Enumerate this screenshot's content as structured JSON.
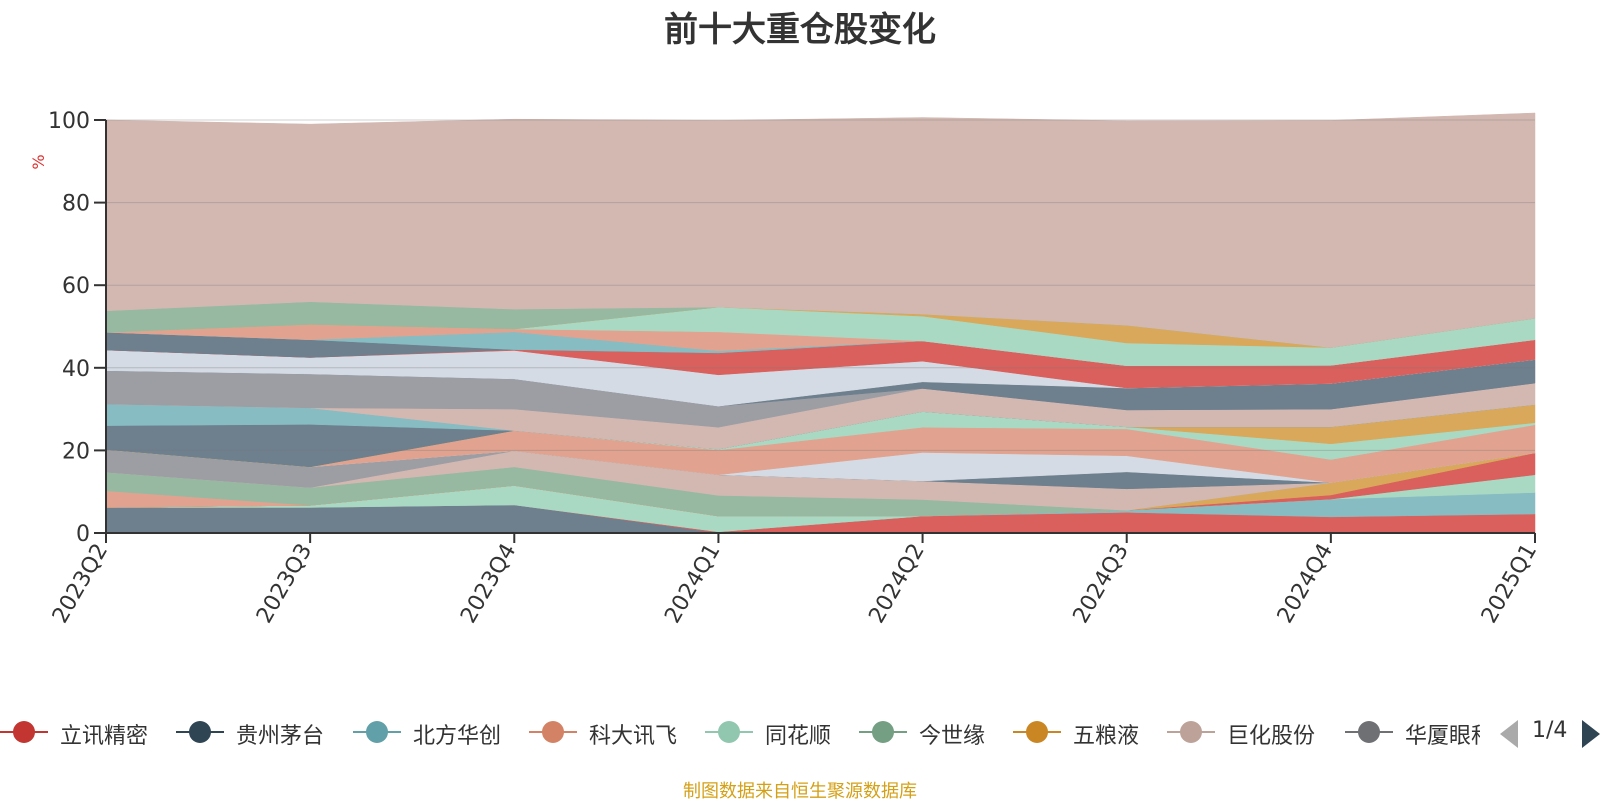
{
  "chart_data": {
    "type": "area",
    "stacked": true,
    "title": "前十大重仓股变化",
    "ylabel": "%",
    "ylim": [
      0,
      100
    ],
    "yticks": [
      0,
      20,
      40,
      60,
      80,
      100
    ],
    "categories": [
      "2023Q2",
      "2023Q3",
      "2023Q4",
      "2024Q1",
      "2024Q2",
      "2024Q3",
      "2024Q4",
      "2025Q1"
    ],
    "grid": true,
    "legend_position": "bottom",
    "series": [
      {
        "color": "#6e7f8e",
        "values": [
          6.2,
          6.2,
          6.8,
          0,
          0,
          0,
          0,
          0
        ]
      },
      {
        "name": "立讯精密",
        "color": "#d9605c",
        "values": [
          0,
          0,
          0,
          0.3,
          4.1,
          5.0,
          3.9,
          4.6
        ]
      },
      {
        "name": "北方华创",
        "color": "#86bcc2",
        "values": [
          0,
          0,
          0,
          0,
          0,
          0.5,
          4.3,
          5.2
        ]
      },
      {
        "name": "同花顺",
        "color": "#a9d9c3",
        "values": [
          0,
          0.5,
          4.7,
          3.8,
          0,
          0,
          0,
          4.3
        ]
      },
      {
        "color": "#d9605c",
        "values": [
          0,
          0,
          0,
          0,
          0,
          0,
          1.0,
          5.3
        ]
      },
      {
        "name": "五粮液",
        "color": "#d9a85a",
        "values": [
          0,
          0,
          0,
          0,
          0,
          0,
          3.0,
          0
        ]
      },
      {
        "name": "科大讯飞",
        "color": "#e1a38f",
        "values": [
          4.0,
          0,
          0,
          0,
          0,
          0,
          0,
          0
        ]
      },
      {
        "name": "今世缘",
        "color": "#97b9a1",
        "values": [
          4.5,
          4.3,
          4.5,
          5.0,
          4.0,
          0,
          0,
          0
        ]
      },
      {
        "name": "巨化股份",
        "color": "#d3b8b1",
        "values": [
          0,
          0,
          3.9,
          5.0,
          4.5,
          5.2,
          0,
          0
        ]
      },
      {
        "name": "华厦眼科",
        "color": "#9c9ea4",
        "values": [
          5.5,
          5.0,
          0,
          0,
          0,
          0,
          0,
          0
        ]
      },
      {
        "name": "贵州茅台",
        "color": "#6e7f8e",
        "values": [
          0,
          0,
          0,
          0,
          0,
          4.1,
          0,
          0
        ]
      },
      {
        "color": "#d5dbe4",
        "values": [
          0,
          0,
          0,
          0,
          6.9,
          3.9,
          0,
          0
        ]
      },
      {
        "color": "#e1a38f",
        "values": [
          0,
          0,
          4.9,
          6.0,
          6.1,
          6.5,
          5.6,
          6.8
        ]
      },
      {
        "color": "#a9d9c3",
        "values": [
          0,
          0,
          0,
          0.2,
          3.8,
          0.5,
          3.8,
          0.5
        ]
      },
      {
        "color": "#d9a85a",
        "values": [
          0,
          0,
          0,
          0,
          0,
          0,
          4.1,
          4.4
        ]
      },
      {
        "color": "#6e7f8e",
        "values": [
          5.8,
          10.3,
          0,
          0,
          0,
          0,
          0,
          0
        ]
      },
      {
        "color": "#86bcc2",
        "values": [
          5.2,
          4.0,
          0,
          0,
          0,
          0,
          0,
          0
        ]
      },
      {
        "color": "#d3b8b1",
        "values": [
          0,
          0,
          5.2,
          5.3,
          5.6,
          4.1,
          4.3,
          5.2
        ]
      },
      {
        "color": "#9c9ea4",
        "values": [
          8.1,
          8.2,
          7.3,
          5.1,
          0,
          0,
          0,
          0
        ]
      },
      {
        "color": "#6e7f8e",
        "values": [
          0,
          0,
          0,
          0,
          1.6,
          5.3,
          6.2,
          5.7
        ]
      },
      {
        "color": "#d5dbe4",
        "values": [
          5.0,
          4.0,
          6.9,
          7.6,
          5.0,
          0,
          0,
          0
        ]
      },
      {
        "color": "#d9605c",
        "values": [
          0,
          0,
          0.2,
          5.3,
          4.9,
          5.4,
          4.4,
          4.8
        ]
      },
      {
        "color": "#6e7f8e",
        "values": [
          4.3,
          4.3,
          0,
          0,
          0,
          0,
          0,
          0
        ]
      },
      {
        "color": "#86bcc2",
        "values": [
          0,
          0,
          4.3,
          0.5,
          0,
          0,
          0,
          0
        ]
      },
      {
        "color": "#e1a38f",
        "values": [
          0,
          3.7,
          0.7,
          4.6,
          0,
          0,
          0,
          0
        ]
      },
      {
        "color": "#a9d9c3",
        "values": [
          0,
          0,
          0,
          6.0,
          6.0,
          5.5,
          4.3,
          5.2
        ]
      },
      {
        "color": "#d9a85a",
        "values": [
          0,
          0,
          0,
          0,
          0.5,
          4.3,
          0,
          0
        ]
      },
      {
        "color": "#97b9a1",
        "values": [
          5.2,
          5.5,
          4.8,
          0,
          0,
          0,
          0,
          0
        ]
      },
      {
        "color": "#d3b8b1",
        "values": [
          46.2,
          43.0,
          46.0,
          45.2,
          47.6,
          49.5,
          55.0,
          49.7
        ]
      }
    ],
    "legend_series": [
      "立讯精密",
      "贵州茅台",
      "北方华创",
      "科大讯飞",
      "同花顺",
      "今世缘",
      "五粮液",
      "巨化股份",
      "华厦眼科"
    ]
  },
  "legend": {
    "items": [
      {
        "label": "立讯精密",
        "color": "#c23531"
      },
      {
        "label": "贵州茅台",
        "color": "#2f4554"
      },
      {
        "label": "北方华创",
        "color": "#61a0a8"
      },
      {
        "label": "科大讯飞",
        "color": "#d48265"
      },
      {
        "label": "同花顺",
        "color": "#91c7ae"
      },
      {
        "label": "今世缘",
        "color": "#749f83"
      },
      {
        "label": "五粮液",
        "color": "#ca8622"
      },
      {
        "label": "巨化股份",
        "color": "#bda29a"
      },
      {
        "label": "华厦眼科",
        "color": "#6e7074"
      }
    ],
    "page": "1/4"
  },
  "source_note": "制图数据来自恒生聚源数据库"
}
